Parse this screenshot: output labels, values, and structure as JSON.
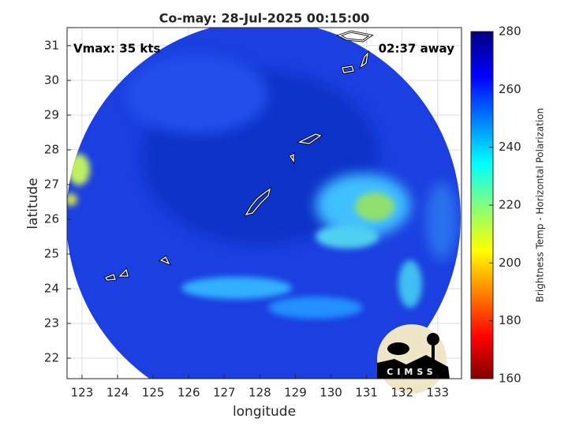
{
  "chart_data": {
    "type": "map",
    "title": "Co-may: 28-Jul-2025 00:15:00",
    "annotations": [
      "Vmax: 35 kts",
      "02:37 away"
    ],
    "xlabel": "longitude",
    "ylabel": "latitude",
    "xlim": [
      122.58,
      133.67
    ],
    "ylim": [
      21.41,
      31.52
    ],
    "xticks": [
      123,
      124,
      125,
      126,
      127,
      128,
      129,
      130,
      131,
      132,
      133
    ],
    "yticks": [
      22,
      23,
      24,
      25,
      26,
      27,
      28,
      29,
      30,
      31
    ],
    "grid": true,
    "colorbar": {
      "label": "Brightness Temp - Horizontal Polarization",
      "lim": [
        160,
        280
      ],
      "ticks": [
        160,
        180,
        200,
        220,
        240,
        260,
        280
      ]
    }
  },
  "logo": {
    "text": "CIMSS"
  }
}
